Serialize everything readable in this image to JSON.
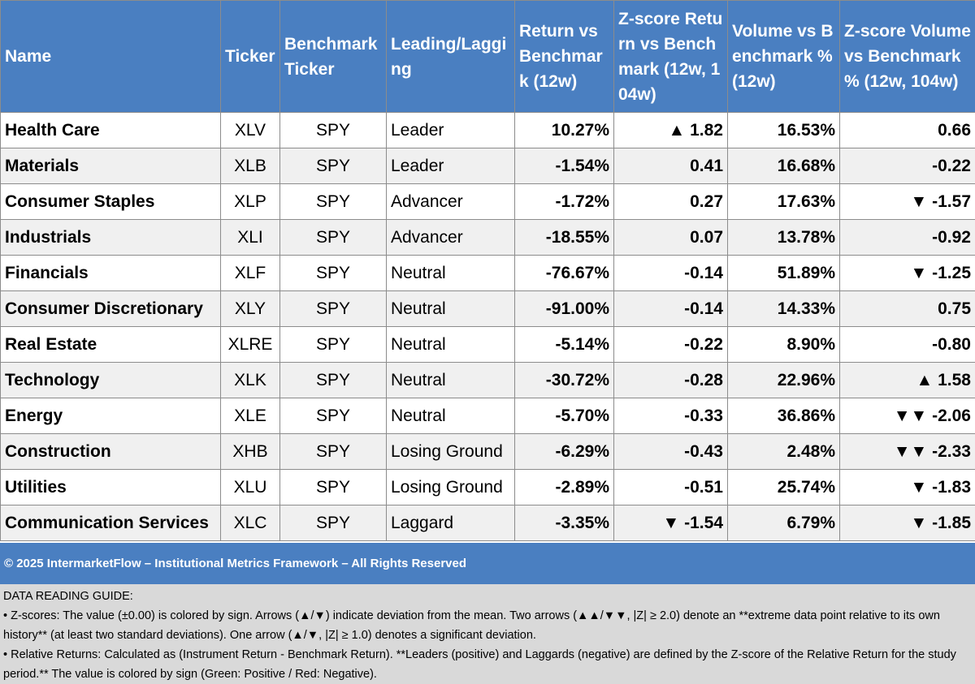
{
  "table": {
    "headers": [
      "Name",
      "Ticker",
      "Benchmark Ticker",
      "Leading/Lagging",
      "Return vs Benchmark (12w)",
      "Z-score Return vs Benchmark (12w, 104w)",
      "Volume vs Benchmark % (12w)",
      "Z-score Volume vs Benchmark % (12w, 104w)"
    ],
    "rows": [
      {
        "name": "Health Care",
        "ticker": "XLV",
        "benchmark": "SPY",
        "status": "Leader",
        "ret": "10.27%",
        "ret_sign": "pos",
        "zret": "▲ 1.82",
        "zret_sign": "pos",
        "vol": "16.53%",
        "vol_sign": "pos",
        "zvol": "0.66",
        "zvol_sign": "pos"
      },
      {
        "name": "Materials",
        "ticker": "XLB",
        "benchmark": "SPY",
        "status": "Leader",
        "ret": "-1.54%",
        "ret_sign": "neg",
        "zret": "0.41",
        "zret_sign": "pos",
        "vol": "16.68%",
        "vol_sign": "pos",
        "zvol": "-0.22",
        "zvol_sign": "neg"
      },
      {
        "name": "Consumer Staples",
        "ticker": "XLP",
        "benchmark": "SPY",
        "status": "Advancer",
        "ret": "-1.72%",
        "ret_sign": "neg",
        "zret": "0.27",
        "zret_sign": "pos",
        "vol": "17.63%",
        "vol_sign": "pos",
        "zvol": "▼ -1.57",
        "zvol_sign": "neg"
      },
      {
        "name": "Industrials",
        "ticker": "XLI",
        "benchmark": "SPY",
        "status": "Advancer",
        "ret": "-18.55%",
        "ret_sign": "neg",
        "zret": "0.07",
        "zret_sign": "pos",
        "vol": "13.78%",
        "vol_sign": "pos",
        "zvol": "-0.92",
        "zvol_sign": "neg"
      },
      {
        "name": "Financials",
        "ticker": "XLF",
        "benchmark": "SPY",
        "status": "Neutral",
        "ret": "-76.67%",
        "ret_sign": "neg",
        "zret": "-0.14",
        "zret_sign": "neg",
        "vol": "51.89%",
        "vol_sign": "pos",
        "zvol": "▼ -1.25",
        "zvol_sign": "neg"
      },
      {
        "name": "Consumer Discretionary",
        "ticker": "XLY",
        "benchmark": "SPY",
        "status": "Neutral",
        "ret": "-91.00%",
        "ret_sign": "neg",
        "zret": "-0.14",
        "zret_sign": "neg",
        "vol": "14.33%",
        "vol_sign": "pos",
        "zvol": "0.75",
        "zvol_sign": "pos"
      },
      {
        "name": "Real Estate",
        "ticker": "XLRE",
        "benchmark": "SPY",
        "status": "Neutral",
        "ret": "-5.14%",
        "ret_sign": "neg",
        "zret": "-0.22",
        "zret_sign": "neg",
        "vol": "8.90%",
        "vol_sign": "pos",
        "zvol": "-0.80",
        "zvol_sign": "neg"
      },
      {
        "name": "Technology",
        "ticker": "XLK",
        "benchmark": "SPY",
        "status": "Neutral",
        "ret": "-30.72%",
        "ret_sign": "neg",
        "zret": "-0.28",
        "zret_sign": "neg",
        "vol": "22.96%",
        "vol_sign": "pos",
        "zvol": "▲ 1.58",
        "zvol_sign": "pos"
      },
      {
        "name": "Energy",
        "ticker": "XLE",
        "benchmark": "SPY",
        "status": "Neutral",
        "ret": "-5.70%",
        "ret_sign": "neg",
        "zret": "-0.33",
        "zret_sign": "neg",
        "vol": "36.86%",
        "vol_sign": "pos",
        "zvol": "▼▼ -2.06",
        "zvol_sign": "neg"
      },
      {
        "name": "Construction",
        "ticker": "XHB",
        "benchmark": "SPY",
        "status": "Losing Ground",
        "ret": "-6.29%",
        "ret_sign": "neg",
        "zret": "-0.43",
        "zret_sign": "neg",
        "vol": "2.48%",
        "vol_sign": "pos",
        "zvol": "▼▼ -2.33",
        "zvol_sign": "neg"
      },
      {
        "name": "Utilities",
        "ticker": "XLU",
        "benchmark": "SPY",
        "status": "Losing Ground",
        "ret": "-2.89%",
        "ret_sign": "neg",
        "zret": "-0.51",
        "zret_sign": "neg",
        "vol": "25.74%",
        "vol_sign": "pos",
        "zvol": "▼ -1.83",
        "zvol_sign": "neg"
      },
      {
        "name": "Communication Services",
        "ticker": "XLC",
        "benchmark": "SPY",
        "status": "Laggard",
        "ret": "-3.35%",
        "ret_sign": "neg",
        "zret": "▼ -1.54",
        "zret_sign": "neg",
        "vol": "6.79%",
        "vol_sign": "pos",
        "zvol": "▼ -1.85",
        "zvol_sign": "neg"
      }
    ]
  },
  "footer": {
    "copyright": "© 2025 IntermarketFlow – Institutional Metrics Framework – All Rights Reserved"
  },
  "guide": {
    "title": "DATA READING GUIDE:",
    "zscores": " • Z-scores: The value (±0.00) is colored by sign. Arrows (▲/▼) indicate deviation from the mean. Two arrows (▲▲/▼▼, |Z| ≥ 2.0) denote an **extreme data point relative to its own history** (at least two standard deviations). One arrow (▲/▼, |Z| ≥ 1.0) denotes a significant deviation.",
    "returns": " • Relative Returns: Calculated as (Instrument Return - Benchmark Return). **Leaders (positive) and Laggards (negative) are defined by the Z-score of the Relative Return for the study period.** The value is colored by sign (Green: Positive / Red: Negative)."
  },
  "colors": {
    "header_bg": "#4a7fc1",
    "positive": "#1a7a12",
    "negative": "#a01515",
    "guide_bg": "#d9d9d9"
  }
}
